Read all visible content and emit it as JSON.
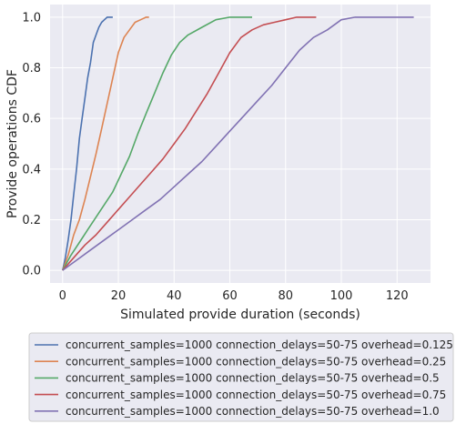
{
  "chart_data": {
    "type": "line",
    "title": "",
    "xlabel": "Simulated provide duration (seconds)",
    "ylabel": "Provide operations CDF",
    "xlim": [
      -4.5,
      132
    ],
    "ylim": [
      -0.05,
      1.05
    ],
    "xticks": [
      0,
      20,
      40,
      60,
      80,
      100,
      120
    ],
    "yticks": [
      0.0,
      0.2,
      0.4,
      0.6,
      0.8,
      1.0
    ],
    "xtick_labels": [
      "0",
      "20",
      "40",
      "60",
      "80",
      "100",
      "120"
    ],
    "ytick_labels": [
      "0.0",
      "0.2",
      "0.4",
      "0.6",
      "0.8",
      "1.0"
    ],
    "grid": true,
    "background": "#eaeaf2",
    "legend_position": "below plot",
    "series": [
      {
        "name": "concurrent_samples=1000 connection_delays=50-75 overhead=0.125",
        "color": "#4c72b0",
        "x": [
          0,
          1,
          2,
          3,
          4,
          5,
          6,
          7,
          8,
          9,
          10,
          11,
          12,
          13,
          14,
          15,
          16,
          17,
          18
        ],
        "y": [
          0,
          0.05,
          0.12,
          0.2,
          0.3,
          0.4,
          0.52,
          0.6,
          0.68,
          0.76,
          0.82,
          0.9,
          0.93,
          0.96,
          0.98,
          0.99,
          1.0,
          1.0,
          1.0
        ]
      },
      {
        "name": "concurrent_samples=1000 connection_delays=50-75 overhead=0.25",
        "color": "#dd8452",
        "x": [
          0,
          2,
          4,
          6,
          8,
          10,
          12,
          14,
          16,
          18,
          20,
          22,
          24,
          26,
          28,
          30,
          31
        ],
        "y": [
          0,
          0.06,
          0.14,
          0.2,
          0.28,
          0.37,
          0.46,
          0.56,
          0.66,
          0.76,
          0.86,
          0.92,
          0.95,
          0.98,
          0.99,
          1.0,
          1.0
        ]
      },
      {
        "name": "concurrent_samples=1000 connection_delays=50-75 overhead=0.5",
        "color": "#55a868",
        "x": [
          0,
          3,
          6,
          9,
          12,
          15,
          18,
          21,
          24,
          27,
          30,
          33,
          36,
          39,
          42,
          45,
          50,
          55,
          60,
          65,
          68
        ],
        "y": [
          0,
          0.06,
          0.11,
          0.16,
          0.21,
          0.26,
          0.31,
          0.38,
          0.45,
          0.54,
          0.62,
          0.7,
          0.78,
          0.85,
          0.9,
          0.93,
          0.96,
          0.99,
          1.0,
          1.0,
          1.0
        ]
      },
      {
        "name": "concurrent_samples=1000 connection_delays=50-75 overhead=0.75",
        "color": "#c44e52",
        "x": [
          0,
          4,
          8,
          12,
          16,
          20,
          24,
          28,
          32,
          36,
          40,
          44,
          48,
          52,
          56,
          60,
          64,
          68,
          72,
          76,
          80,
          84,
          88,
          91
        ],
        "y": [
          0,
          0.05,
          0.1,
          0.14,
          0.19,
          0.24,
          0.29,
          0.34,
          0.39,
          0.44,
          0.5,
          0.56,
          0.63,
          0.7,
          0.78,
          0.86,
          0.92,
          0.95,
          0.97,
          0.98,
          0.99,
          1.0,
          1.0,
          1.0
        ]
      },
      {
        "name": "concurrent_samples=1000 connection_delays=50-75 overhead=1.0",
        "color": "#8172b3",
        "x": [
          0,
          5,
          10,
          15,
          20,
          25,
          30,
          35,
          40,
          45,
          50,
          55,
          60,
          65,
          70,
          75,
          80,
          85,
          90,
          95,
          100,
          105,
          110,
          115,
          120,
          126
        ],
        "y": [
          0,
          0.04,
          0.08,
          0.12,
          0.16,
          0.2,
          0.24,
          0.28,
          0.33,
          0.38,
          0.43,
          0.49,
          0.55,
          0.61,
          0.67,
          0.73,
          0.8,
          0.87,
          0.92,
          0.95,
          0.99,
          1.0,
          1.0,
          1.0,
          1.0,
          1.0
        ]
      }
    ]
  }
}
